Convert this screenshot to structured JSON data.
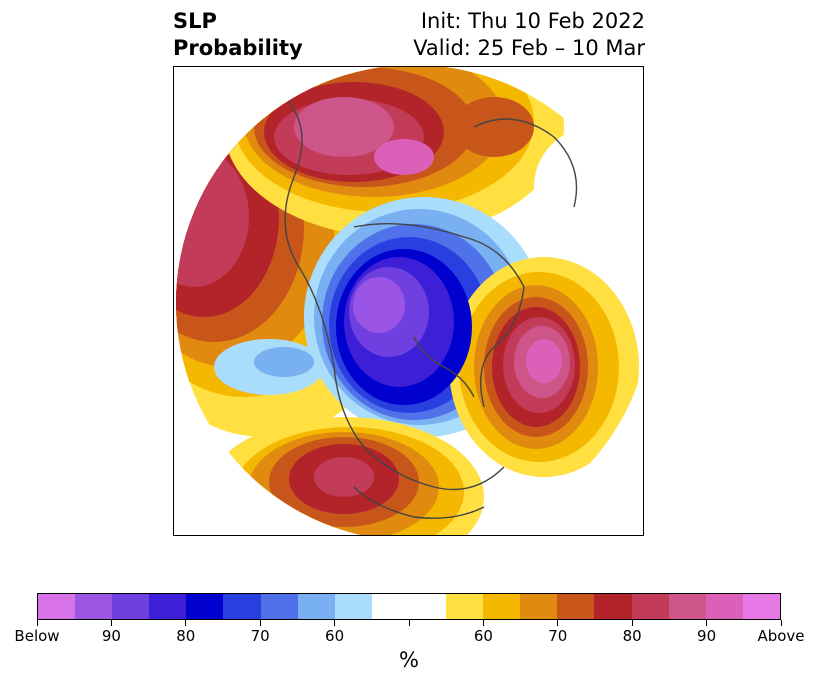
{
  "title": {
    "left_line1": "SLP",
    "left_line2": "Probability",
    "right_line1": "Init: Thu 10 Feb 2022",
    "right_line2": "Valid: 25 Feb – 10 Mar"
  },
  "colorbar": {
    "colors": [
      "#d872e8",
      "#9c57e2",
      "#6f3fe0",
      "#3d1fd8",
      "#0000cf",
      "#2a3fe0",
      "#4f72ea",
      "#78b0f2",
      "#aadcfb",
      "#ffffff",
      "#ffffff",
      "#ffe040",
      "#f5b800",
      "#e08a10",
      "#c8561a",
      "#b2242a",
      "#c23b58",
      "#cd5589",
      "#dc60b8",
      "#e878e6"
    ],
    "tick_labels": [
      "Below",
      "90",
      "80",
      "70",
      "60",
      "",
      "60",
      "70",
      "80",
      "90",
      "Above"
    ],
    "units": "%"
  },
  "map": {
    "projection": "polar stereographic",
    "fields": {
      "below_center_color": "#9a54e6",
      "above_center_color": "#dc60b8"
    }
  }
}
